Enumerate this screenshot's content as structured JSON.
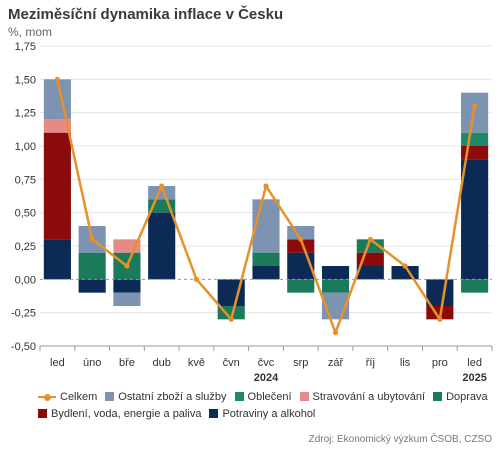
{
  "header": {
    "title": "Meziměsíční dynamika inflace v Česku",
    "unit": "%, mom"
  },
  "source": "Zdroj: Ekonomický výzkum ČSOB, CZSO",
  "chart_data": {
    "type": "bar",
    "stacked": true,
    "title": "Meziměsíční dynamika inflace v Česku",
    "ylabel": "%, mom",
    "ylim": [
      -0.5,
      1.75
    ],
    "yticks": [
      -0.5,
      -0.25,
      0.0,
      0.25,
      0.5,
      0.75,
      1.0,
      1.25,
      1.5,
      1.75
    ],
    "ytick_labels": [
      "-0,50",
      "-0,25",
      "0,00",
      "0,25",
      "0,50",
      "0,75",
      "1,00",
      "1,25",
      "1,50",
      "1,75"
    ],
    "categories": [
      "led",
      "úno",
      "bře",
      "dub",
      "kvě",
      "čvn",
      "čvc",
      "srp",
      "zář",
      "říj",
      "lis",
      "pro",
      "led"
    ],
    "year_labels": [
      {
        "label": "2024",
        "category_index": 6
      },
      {
        "label": "2025",
        "category_index": 12
      }
    ],
    "grid": true,
    "legend_position": "bottom",
    "series": [
      {
        "name": "Potraviny a alkohol",
        "color": "#0b2a55",
        "values": [
          0.3,
          -0.1,
          -0.1,
          0.5,
          0.0,
          -0.2,
          0.1,
          0.2,
          0.1,
          0.1,
          0.1,
          -0.2,
          0.9
        ]
      },
      {
        "name": "Bydlení, voda, energie a paliva",
        "color": "#8b0a0a",
        "values": [
          0.8,
          0.0,
          0.0,
          0.0,
          0.0,
          0.0,
          0.0,
          0.1,
          0.0,
          0.1,
          0.0,
          -0.1,
          0.1
        ]
      },
      {
        "name": "Doprava",
        "color": "#1a7a5a",
        "values": [
          0.0,
          0.2,
          0.2,
          0.1,
          0.0,
          -0.1,
          0.1,
          -0.1,
          -0.1,
          0.1,
          0.0,
          0.0,
          -0.1
        ]
      },
      {
        "name": "Stravování a ubytování",
        "color": "#e58a86",
        "values": [
          0.1,
          0.0,
          0.1,
          0.0,
          0.0,
          0.0,
          0.0,
          0.0,
          0.0,
          0.0,
          0.0,
          0.0,
          0.0
        ]
      },
      {
        "name": "Oblečení",
        "color": "#1f8a6a",
        "values": [
          0.0,
          0.0,
          0.0,
          0.0,
          0.0,
          0.0,
          0.0,
          0.0,
          0.0,
          0.0,
          0.0,
          0.0,
          0.1
        ]
      },
      {
        "name": "Ostatní zboží a služby",
        "color": "#7d93b2",
        "values": [
          0.3,
          0.2,
          -0.1,
          0.1,
          0.0,
          0.0,
          0.4,
          0.1,
          -0.2,
          0.0,
          0.0,
          0.0,
          0.3
        ]
      }
    ],
    "line_series": {
      "name": "Celkem",
      "color": "#e8912a",
      "values": [
        1.5,
        0.3,
        0.1,
        0.7,
        0.0,
        -0.3,
        0.7,
        0.3,
        -0.4,
        0.3,
        0.1,
        -0.3,
        1.3
      ]
    },
    "legend": {
      "rows": [
        [
          "Celkem",
          "Ostatní zboží a služby",
          "Oblečení",
          "Stravování a ubytování",
          "Doprava"
        ],
        [
          "Bydlení, voda, energie a paliva",
          "Potraviny a alkohol"
        ]
      ]
    }
  }
}
